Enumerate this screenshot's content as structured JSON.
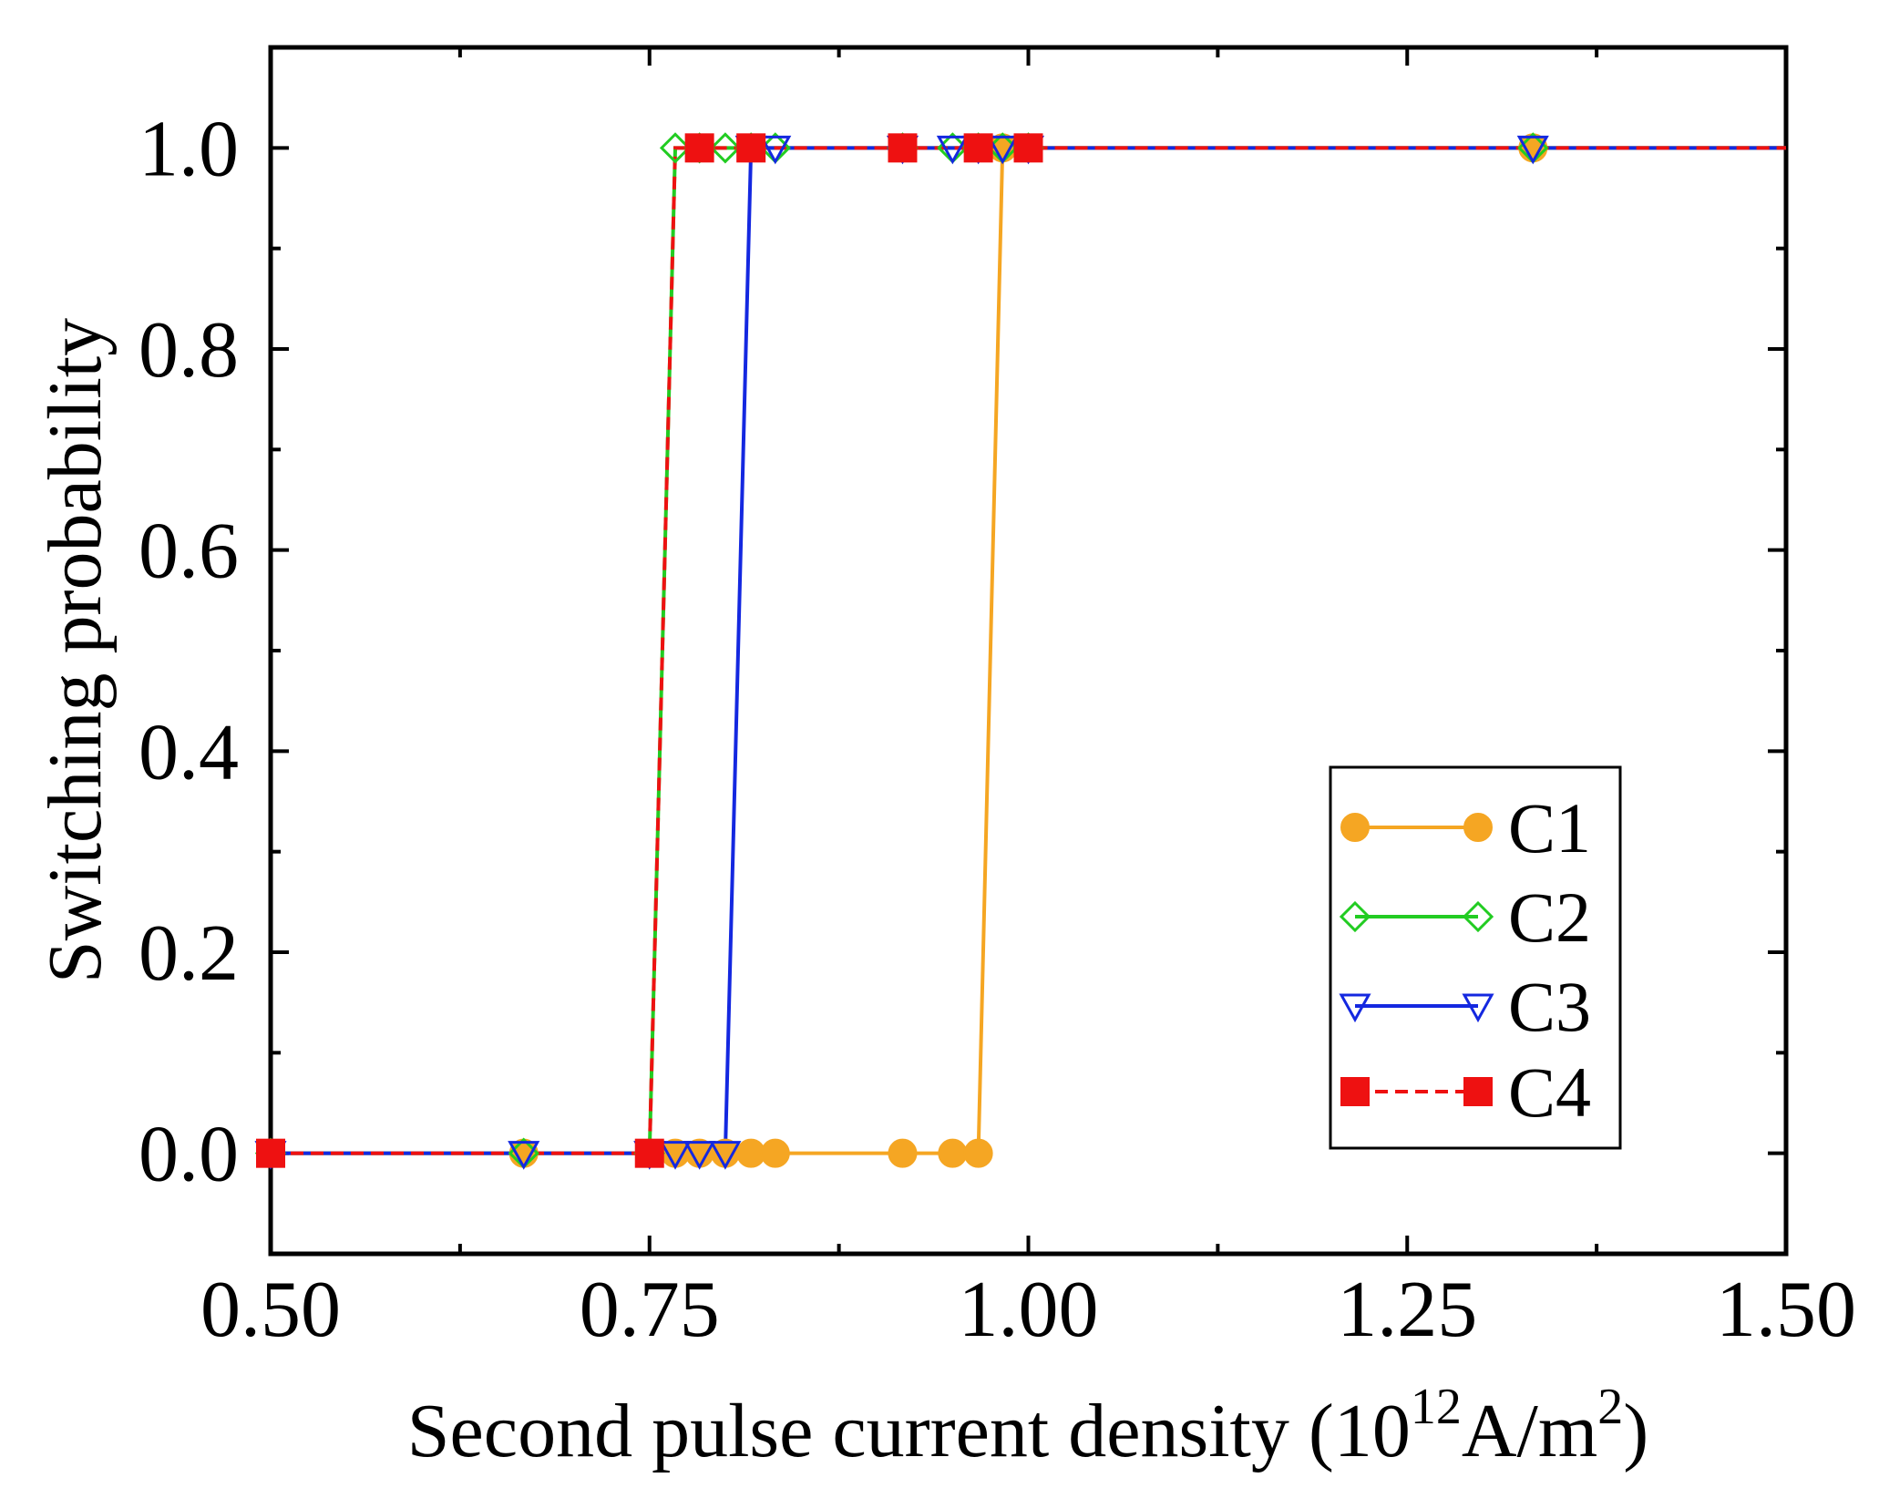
{
  "chart_data": {
    "type": "line",
    "title": "",
    "xlabel": "Second pulse current density (10",
    "xlabel_sup1": "12",
    "xlabel_mid": "A/m",
    "xlabel_sup2": "2",
    "xlabel_end": ")",
    "ylabel": "Switching probability",
    "xlim": [
      0.5,
      1.5
    ],
    "ylim": [
      -0.1,
      1.1
    ],
    "xticks": [
      0.5,
      0.75,
      1.0,
      1.25,
      1.5
    ],
    "xtick_labels": [
      "0.50",
      "0.75",
      "1.00",
      "1.25",
      "1.50"
    ],
    "yticks": [
      0.0,
      0.2,
      0.4,
      0.6,
      0.8,
      1.0
    ],
    "ytick_labels": [
      "0.0",
      "0.2",
      "0.4",
      "0.6",
      "0.8",
      "1.0"
    ],
    "legend_position": "lower-right",
    "series": [
      {
        "name": "C1",
        "color": "#F5A623",
        "marker": "circle",
        "dash": "solid",
        "x": [
          0.5,
          0.667,
          0.75,
          0.767,
          0.783,
          0.8,
          0.817,
          0.833,
          0.917,
          0.95,
          0.967,
          0.983,
          1.0,
          1.333,
          1.5
        ],
        "y": [
          0,
          0,
          0,
          0,
          0,
          0,
          0,
          0,
          0,
          0,
          0,
          1,
          1,
          1,
          1
        ]
      },
      {
        "name": "C2",
        "color": "#22CC22",
        "marker": "diamond-open",
        "dash": "solid",
        "x": [
          0.5,
          0.667,
          0.75,
          0.767,
          0.783,
          0.8,
          0.817,
          0.833,
          0.917,
          0.95,
          0.967,
          0.983,
          1.0,
          1.333,
          1.5
        ],
        "y": [
          0,
          0,
          0,
          1,
          1,
          1,
          1,
          1,
          1,
          1,
          1,
          1,
          1,
          1,
          1
        ]
      },
      {
        "name": "C3",
        "color": "#1428E0",
        "marker": "triangle-down-open",
        "dash": "solid",
        "x": [
          0.5,
          0.667,
          0.75,
          0.767,
          0.783,
          0.8,
          0.817,
          0.833,
          0.917,
          0.95,
          0.967,
          0.983,
          1.0,
          1.333,
          1.5
        ],
        "y": [
          0,
          0,
          0,
          0,
          0,
          0,
          1,
          1,
          1,
          1,
          1,
          1,
          1,
          1,
          1
        ]
      },
      {
        "name": "C4",
        "color": "#EE1111",
        "marker": "square",
        "dash": "dashed",
        "x": [
          0.5,
          0.75,
          0.783,
          0.817,
          0.917,
          0.967,
          1.0
        ],
        "y": [
          0,
          0,
          1,
          1,
          1,
          1,
          1
        ],
        "line_x": [
          0.5,
          0.75,
          0.767,
          0.783,
          0.817,
          0.917,
          0.967,
          1.0,
          1.5
        ],
        "line_y": [
          0,
          0,
          1,
          1,
          1,
          1,
          1,
          1,
          1
        ]
      }
    ]
  }
}
